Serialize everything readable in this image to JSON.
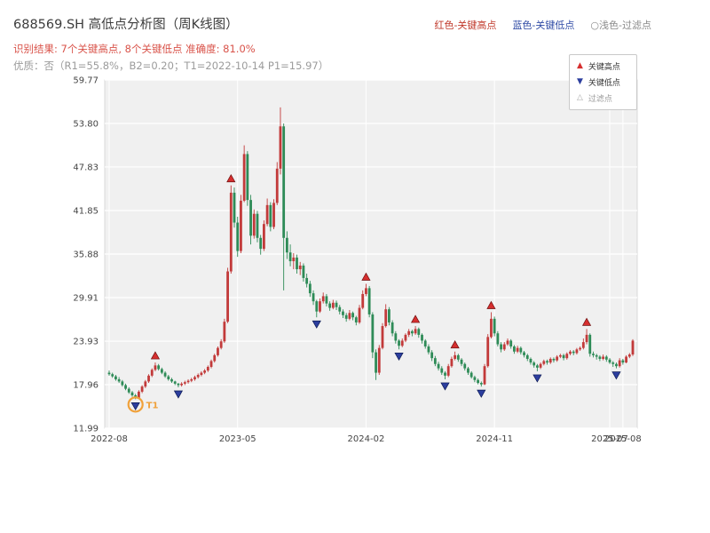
{
  "header": {
    "title": "688569.SH 高低点分析图（周K线图）",
    "top_legend": [
      {
        "label": "红色-关键高点",
        "color": "#c0392b"
      },
      {
        "label": "蓝色-关键低点",
        "color": "#2f4ba5"
      },
      {
        "label": "○浅色-过滤点",
        "color": "#8a8a8a"
      }
    ],
    "result_line": "识别结果: 7个关键高点, 8个关键低点  准确度: 81.0%",
    "quality_line": "优质：否（R1=55.8%，B2=0.20；T1=2022-10-14 P1=15.97）"
  },
  "analysis": {
    "key_high_count": 7,
    "key_low_count": 8,
    "accuracy_pct": 81.0,
    "premium": "否",
    "r1_pct": 55.8,
    "b2": 0.2,
    "t1_date": "2022-10-14",
    "p1": 15.97
  },
  "chart_data": {
    "type": "candlestick",
    "symbol": "688569.SH",
    "period": "周K线",
    "ylim": [
      11.99,
      59.77
    ],
    "yticks": [
      59.77,
      53.8,
      47.83,
      41.85,
      35.88,
      29.91,
      23.93,
      17.96,
      11.99
    ],
    "xticks": [
      {
        "index": 0,
        "label": "2022-08"
      },
      {
        "index": 39,
        "label": "2023-05"
      },
      {
        "index": 78,
        "label": "2024-02"
      },
      {
        "index": 117,
        "label": "2024-11"
      },
      {
        "index": 152,
        "label": "2025-07"
      },
      {
        "index": 156,
        "label": "2025-08"
      }
    ],
    "legend": [
      {
        "label": "关键高点",
        "marker": "triangle-up",
        "color": "#d62f2f"
      },
      {
        "label": "关键低点",
        "marker": "triangle-down",
        "color": "#2c3e9e"
      },
      {
        "label": "过滤点",
        "marker": "triangle-up-hollow",
        "color": "#aaaaaa"
      }
    ],
    "colors": {
      "up": "#c23a3a",
      "down": "#2e8b57",
      "key_high": "#d62f2f",
      "key_low": "#2c3e9e",
      "t1_ring": "#f0a13a"
    },
    "key_high_weeks": [
      14,
      37,
      78,
      93,
      105,
      116,
      145
    ],
    "key_low_weeks": [
      8,
      21,
      63,
      88,
      102,
      113,
      130,
      154
    ],
    "t1": {
      "week": 8,
      "price": 15.97,
      "label": "T1",
      "date": "2022-10-14"
    },
    "candles": [
      [
        19.6,
        19.9,
        19.2,
        19.4
      ],
      [
        19.4,
        19.6,
        18.9,
        19.1
      ],
      [
        19.1,
        19.3,
        18.5,
        18.7
      ],
      [
        18.7,
        19.0,
        18.2,
        18.4
      ],
      [
        18.4,
        18.6,
        17.7,
        17.9
      ],
      [
        17.9,
        18.1,
        17.2,
        17.4
      ],
      [
        17.4,
        17.6,
        16.7,
        16.9
      ],
      [
        16.9,
        17.1,
        16.3,
        16.5
      ],
      [
        16.5,
        16.7,
        15.97,
        16.1
      ],
      [
        16.1,
        17.2,
        16.0,
        17.0
      ],
      [
        17.0,
        17.9,
        16.8,
        17.7
      ],
      [
        17.7,
        18.6,
        17.5,
        18.4
      ],
      [
        18.4,
        19.4,
        18.2,
        19.2
      ],
      [
        19.2,
        20.2,
        19.0,
        20.0
      ],
      [
        20.0,
        21.0,
        19.8,
        20.6
      ],
      [
        20.6,
        20.8,
        19.9,
        20.1
      ],
      [
        20.1,
        20.3,
        19.4,
        19.6
      ],
      [
        19.6,
        19.8,
        18.9,
        19.1
      ],
      [
        19.1,
        19.3,
        18.5,
        18.7
      ],
      [
        18.7,
        18.9,
        18.2,
        18.4
      ],
      [
        18.4,
        18.5,
        17.9,
        18.1
      ],
      [
        18.1,
        18.2,
        17.6,
        17.9
      ],
      [
        17.9,
        18.3,
        17.7,
        18.1
      ],
      [
        18.1,
        18.5,
        17.9,
        18.3
      ],
      [
        18.3,
        18.7,
        18.1,
        18.5
      ],
      [
        18.5,
        18.9,
        18.3,
        18.7
      ],
      [
        18.7,
        19.2,
        18.5,
        19.0
      ],
      [
        19.0,
        19.5,
        18.8,
        19.3
      ],
      [
        19.3,
        19.8,
        19.1,
        19.6
      ],
      [
        19.6,
        20.1,
        19.4,
        19.9
      ],
      [
        19.9,
        20.6,
        19.7,
        20.4
      ],
      [
        20.4,
        21.4,
        20.2,
        21.2
      ],
      [
        21.2,
        22.2,
        21.0,
        22.0
      ],
      [
        22.0,
        23.2,
        21.8,
        23.0
      ],
      [
        23.0,
        24.2,
        22.8,
        23.9
      ],
      [
        23.9,
        27.0,
        23.7,
        26.6
      ],
      [
        26.6,
        34.0,
        26.4,
        33.5
      ],
      [
        33.5,
        45.3,
        33.2,
        44.3
      ],
      [
        44.3,
        45.0,
        39.5,
        40.2
      ],
      [
        40.2,
        41.0,
        35.5,
        36.3
      ],
      [
        36.3,
        44.0,
        36.0,
        43.2
      ],
      [
        43.2,
        50.8,
        43.0,
        49.6
      ],
      [
        49.6,
        50.0,
        42.5,
        43.3
      ],
      [
        43.3,
        44.0,
        37.2,
        38.4
      ],
      [
        38.4,
        42.0,
        38.0,
        41.4
      ],
      [
        41.4,
        41.8,
        37.5,
        38.1
      ],
      [
        38.1,
        38.5,
        35.8,
        36.6
      ],
      [
        36.6,
        40.5,
        36.3,
        40.0
      ],
      [
        40.0,
        43.5,
        39.7,
        42.6
      ],
      [
        42.6,
        43.0,
        39.0,
        39.6
      ],
      [
        39.6,
        43.4,
        39.3,
        42.9
      ],
      [
        42.9,
        48.5,
        42.6,
        47.6
      ],
      [
        47.6,
        56.0,
        46.8,
        53.4
      ],
      [
        53.4,
        53.8,
        30.9,
        38.1
      ],
      [
        38.1,
        39.0,
        35.2,
        36.1
      ],
      [
        36.1,
        37.2,
        34.2,
        34.9
      ],
      [
        34.9,
        36.0,
        33.8,
        35.4
      ],
      [
        35.4,
        35.8,
        33.2,
        33.8
      ],
      [
        33.8,
        34.8,
        33.0,
        34.3
      ],
      [
        34.3,
        34.6,
        32.1,
        32.6
      ],
      [
        32.6,
        33.2,
        31.3,
        31.8
      ],
      [
        31.8,
        32.2,
        30.0,
        30.5
      ],
      [
        30.5,
        30.9,
        28.9,
        29.4
      ],
      [
        29.4,
        29.6,
        27.2,
        28.0
      ],
      [
        28.0,
        29.8,
        27.8,
        29.4
      ],
      [
        29.4,
        30.6,
        29.1,
        30.1
      ],
      [
        30.1,
        30.4,
        28.7,
        29.1
      ],
      [
        29.1,
        29.4,
        28.1,
        28.5
      ],
      [
        28.5,
        29.6,
        28.3,
        29.2
      ],
      [
        29.2,
        29.5,
        28.2,
        28.6
      ],
      [
        28.6,
        28.9,
        27.6,
        28.0
      ],
      [
        28.0,
        28.3,
        27.1,
        27.5
      ],
      [
        27.5,
        27.8,
        26.6,
        27.0
      ],
      [
        27.0,
        28.2,
        26.8,
        27.8
      ],
      [
        27.8,
        28.0,
        26.8,
        27.2
      ],
      [
        27.2,
        27.4,
        26.1,
        26.5
      ],
      [
        26.5,
        28.9,
        26.3,
        28.5
      ],
      [
        28.5,
        30.9,
        28.3,
        30.4
      ],
      [
        30.4,
        31.8,
        30.1,
        31.2
      ],
      [
        31.2,
        31.5,
        27.2,
        27.6
      ],
      [
        27.6,
        27.9,
        21.6,
        22.4
      ],
      [
        22.4,
        22.8,
        18.6,
        19.6
      ],
      [
        19.6,
        23.4,
        19.3,
        23.0
      ],
      [
        23.0,
        26.4,
        22.8,
        26.0
      ],
      [
        26.0,
        29.0,
        25.8,
        28.3
      ],
      [
        28.3,
        28.6,
        26.1,
        26.5
      ],
      [
        26.5,
        26.8,
        24.6,
        25.0
      ],
      [
        25.0,
        25.3,
        23.6,
        24.0
      ],
      [
        24.0,
        24.2,
        22.8,
        23.3
      ],
      [
        23.3,
        24.3,
        23.1,
        24.0
      ],
      [
        24.0,
        25.0,
        23.8,
        24.8
      ],
      [
        24.8,
        25.6,
        24.5,
        25.3
      ],
      [
        25.3,
        25.5,
        24.6,
        25.0
      ],
      [
        25.0,
        26.0,
        24.8,
        25.6
      ],
      [
        25.6,
        25.8,
        24.4,
        24.8
      ],
      [
        24.8,
        25.0,
        23.6,
        24.0
      ],
      [
        24.0,
        24.2,
        22.9,
        23.2
      ],
      [
        23.2,
        23.5,
        22.1,
        22.4
      ],
      [
        22.4,
        22.7,
        21.2,
        21.6
      ],
      [
        21.6,
        21.9,
        20.5,
        20.8
      ],
      [
        20.8,
        21.1,
        19.9,
        20.2
      ],
      [
        20.2,
        20.5,
        19.3,
        19.6
      ],
      [
        19.6,
        19.8,
        18.7,
        19.2
      ],
      [
        19.2,
        20.8,
        19.0,
        20.5
      ],
      [
        20.5,
        21.8,
        20.3,
        21.5
      ],
      [
        21.5,
        22.5,
        21.3,
        22.0
      ],
      [
        22.0,
        22.2,
        21.1,
        21.4
      ],
      [
        21.4,
        21.6,
        20.5,
        20.8
      ],
      [
        20.8,
        21.0,
        19.9,
        20.2
      ],
      [
        20.2,
        20.4,
        19.3,
        19.6
      ],
      [
        19.6,
        19.8,
        18.8,
        19.0
      ],
      [
        19.0,
        19.2,
        18.3,
        18.6
      ],
      [
        18.6,
        18.8,
        18.0,
        18.2
      ],
      [
        18.2,
        18.4,
        17.7,
        18.0
      ],
      [
        18.0,
        20.8,
        17.9,
        20.5
      ],
      [
        20.5,
        24.9,
        20.3,
        24.5
      ],
      [
        24.5,
        27.9,
        24.3,
        27.0
      ],
      [
        27.0,
        27.3,
        24.6,
        25.0
      ],
      [
        25.0,
        25.3,
        23.2,
        23.5
      ],
      [
        23.5,
        23.8,
        22.4,
        22.8
      ],
      [
        22.8,
        23.8,
        22.6,
        23.5
      ],
      [
        23.5,
        24.3,
        23.3,
        24.0
      ],
      [
        24.0,
        24.2,
        22.9,
        23.2
      ],
      [
        23.2,
        23.4,
        22.2,
        22.5
      ],
      [
        22.5,
        23.3,
        22.3,
        23.0
      ],
      [
        23.0,
        23.2,
        22.1,
        22.4
      ],
      [
        22.4,
        22.6,
        21.7,
        22.0
      ],
      [
        22.0,
        22.2,
        21.2,
        21.5
      ],
      [
        21.5,
        21.7,
        20.7,
        21.0
      ],
      [
        21.0,
        21.2,
        20.3,
        20.6
      ],
      [
        20.6,
        20.8,
        19.8,
        20.3
      ],
      [
        20.3,
        21.0,
        20.1,
        20.8
      ],
      [
        20.8,
        21.4,
        20.6,
        21.2
      ],
      [
        21.2,
        21.4,
        20.7,
        21.0
      ],
      [
        21.0,
        21.7,
        20.8,
        21.5
      ],
      [
        21.5,
        21.7,
        21.0,
        21.3
      ],
      [
        21.3,
        22.0,
        21.1,
        21.8
      ],
      [
        21.8,
        22.2,
        21.6,
        22.0
      ],
      [
        22.0,
        22.2,
        21.3,
        21.6
      ],
      [
        21.6,
        22.4,
        21.4,
        22.2
      ],
      [
        22.2,
        22.7,
        22.0,
        22.5
      ],
      [
        22.5,
        22.7,
        22.0,
        22.3
      ],
      [
        22.3,
        23.0,
        22.1,
        22.8
      ],
      [
        22.8,
        23.2,
        22.6,
        23.0
      ],
      [
        23.0,
        24.3,
        22.8,
        23.8
      ],
      [
        23.8,
        25.6,
        23.5,
        24.8
      ],
      [
        24.8,
        25.0,
        21.8,
        22.2
      ],
      [
        22.2,
        22.5,
        21.7,
        22.0
      ],
      [
        22.0,
        22.2,
        21.4,
        21.8
      ],
      [
        21.8,
        22.0,
        21.2,
        21.5
      ],
      [
        21.5,
        22.1,
        21.3,
        21.8
      ],
      [
        21.8,
        22.0,
        21.1,
        21.4
      ],
      [
        21.4,
        21.6,
        20.8,
        21.0
      ],
      [
        21.0,
        21.2,
        20.4,
        20.8
      ],
      [
        20.8,
        21.0,
        20.2,
        20.5
      ],
      [
        20.5,
        21.6,
        20.3,
        21.3
      ],
      [
        21.3,
        21.5,
        20.7,
        21.0
      ],
      [
        21.0,
        22.0,
        20.9,
        21.8
      ],
      [
        21.8,
        22.3,
        21.6,
        22.1
      ],
      [
        22.1,
        24.2,
        21.9,
        24.0
      ]
    ]
  }
}
